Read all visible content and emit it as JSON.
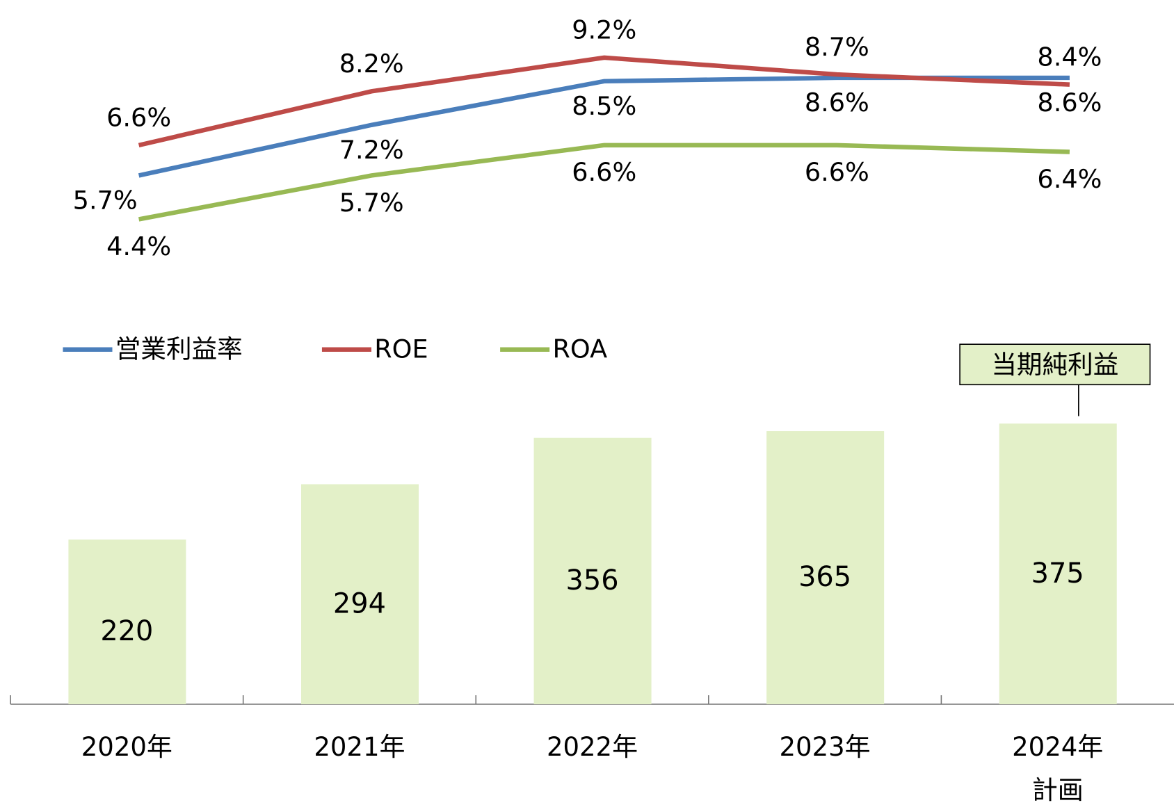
{
  "chart_data": {
    "type": "bar+line",
    "categories": [
      "2020年",
      "2021年",
      "2022年",
      "2023年",
      "2024年\n計画"
    ],
    "series": [
      {
        "name": "当期純利益",
        "type": "bar",
        "color": "#e3f0c8",
        "values": [
          220,
          294,
          356,
          365,
          375
        ]
      },
      {
        "name": "営業利益率",
        "type": "line",
        "axis": "y2",
        "color": "#4a7ebb",
        "values": [
          5.7,
          7.2,
          8.5,
          8.6,
          8.6
        ],
        "value_labels": [
          "5.7%",
          "7.2%",
          "8.5%",
          "8.6%",
          "8.6%"
        ]
      },
      {
        "name": "ROE",
        "type": "line",
        "axis": "y2",
        "color": "#be4b48",
        "values": [
          6.6,
          8.2,
          9.2,
          8.7,
          8.4
        ],
        "value_labels": [
          "6.6%",
          "8.2%",
          "9.2%",
          "8.7%",
          "8.4%"
        ]
      },
      {
        "name": "ROA",
        "type": "line",
        "axis": "y2",
        "color": "#98b954",
        "values": [
          4.4,
          5.7,
          6.6,
          6.6,
          6.4
        ],
        "value_labels": [
          "4.4%",
          "5.7%",
          "6.6%",
          "6.6%",
          "6.4%"
        ]
      }
    ],
    "ylim": [
      0,
      900
    ],
    "y2lim": [
      -10,
      10
    ]
  }
}
